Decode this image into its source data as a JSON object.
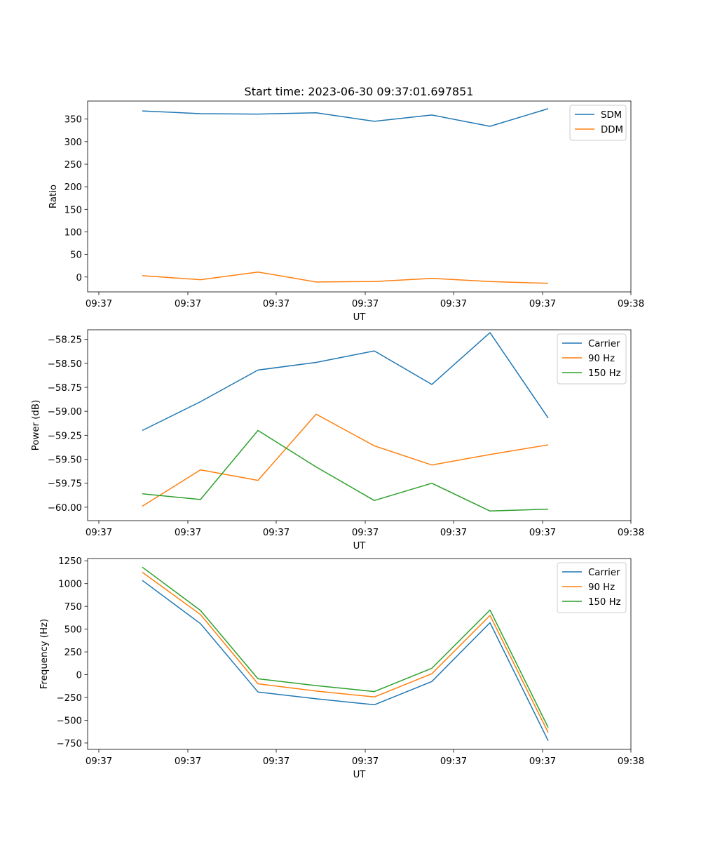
{
  "title": "Start time: 2023-06-30 09:37:01.697851",
  "colors": {
    "blue": "#1f77b4",
    "orange": "#ff7f0e",
    "green": "#2ca02c"
  },
  "chart_data": [
    {
      "type": "line",
      "xlabel": "UT",
      "ylabel": "Ratio",
      "x_tick_labels": [
        "09:37",
        "09:37",
        "09:37",
        "09:37",
        "09:37",
        "09:37",
        "09:38"
      ],
      "y_ticks": [
        0,
        50,
        100,
        150,
        200,
        250,
        300,
        350
      ],
      "y_tick_labels": [
        "0",
        "50",
        "100",
        "150",
        "200",
        "250",
        "300",
        "350"
      ],
      "ylim": [
        -33,
        390
      ],
      "grid": false,
      "legend": "top-right",
      "series": [
        {
          "name": "SDM",
          "color": "#1f77b4",
          "values": [
            368,
            362,
            361,
            364,
            345,
            359,
            334,
            373
          ]
        },
        {
          "name": "DDM",
          "color": "#ff7f0e",
          "values": [
            3,
            -6,
            11,
            -11,
            -10,
            -3,
            -10,
            -14
          ]
        }
      ]
    },
    {
      "type": "line",
      "xlabel": "UT",
      "ylabel": "Power (dB)",
      "x_tick_labels": [
        "09:37",
        "09:37",
        "09:37",
        "09:37",
        "09:37",
        "09:37",
        "09:38"
      ],
      "y_ticks": [
        -60.0,
        -59.75,
        -59.5,
        -59.25,
        -59.0,
        -58.75,
        -58.5,
        -58.25
      ],
      "y_tick_labels": [
        "−60.00",
        "−59.75",
        "−59.50",
        "−59.25",
        "−59.00",
        "−58.75",
        "−58.50",
        "−58.25"
      ],
      "ylim": [
        -60.14,
        -58.15
      ],
      "grid": false,
      "legend": "top-right",
      "series": [
        {
          "name": "Carrier",
          "color": "#1f77b4",
          "values": [
            -59.2,
            -58.9,
            -58.57,
            -58.49,
            -58.37,
            -58.72,
            -58.18,
            -59.07
          ]
        },
        {
          "name": "90 Hz",
          "color": "#ff7f0e",
          "values": [
            -59.99,
            -59.61,
            -59.72,
            -59.03,
            -59.36,
            -59.56,
            -59.45,
            -59.35
          ]
        },
        {
          "name": "150 Hz",
          "color": "#2ca02c",
          "values": [
            -59.86,
            -59.92,
            -59.2,
            -59.58,
            -59.93,
            -59.75,
            -60.04,
            -60.02
          ]
        }
      ]
    },
    {
      "type": "line",
      "xlabel": "UT",
      "ylabel": "Frequency (Hz)",
      "x_tick_labels": [
        "09:37",
        "09:37",
        "09:37",
        "09:37",
        "09:37",
        "09:37",
        "09:38"
      ],
      "y_ticks": [
        -750,
        -500,
        -250,
        0,
        250,
        500,
        750,
        1000,
        1250
      ],
      "y_tick_labels": [
        "−750",
        "−500",
        "−250",
        "0",
        "250",
        "500",
        "750",
        "1000",
        "1250"
      ],
      "ylim": [
        -820,
        1275
      ],
      "grid": false,
      "legend": "top-right",
      "series": [
        {
          "name": "Carrier",
          "color": "#1f77b4",
          "values": [
            1035,
            560,
            -190,
            -265,
            -330,
            -75,
            570,
            -725
          ]
        },
        {
          "name": "90 Hz",
          "color": "#ff7f0e",
          "values": [
            1125,
            660,
            -100,
            -180,
            -245,
            10,
            650,
            -635
          ]
        },
        {
          "name": "150 Hz",
          "color": "#2ca02c",
          "values": [
            1180,
            705,
            -45,
            -120,
            -185,
            70,
            710,
            -580
          ]
        }
      ]
    }
  ]
}
